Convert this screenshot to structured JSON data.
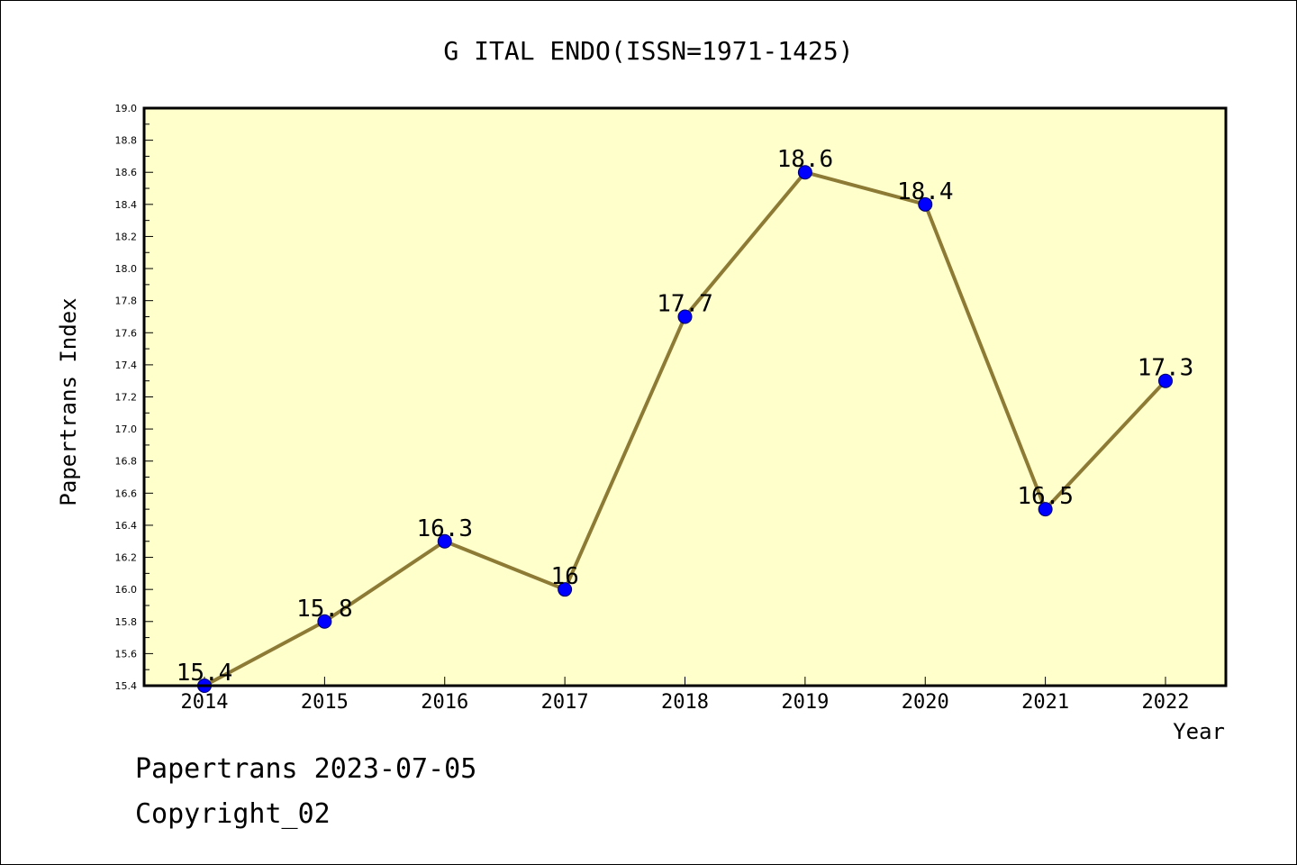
{
  "chart_data": {
    "type": "line",
    "title": "G ITAL ENDO(ISSN=1971-1425)",
    "xlabel": "Year",
    "ylabel": "Papertrans Index",
    "x": [
      "2014",
      "2015",
      "2016",
      "2017",
      "2018",
      "2019",
      "2020",
      "2021",
      "2022"
    ],
    "series": [
      {
        "values": [
          15.4,
          15.8,
          16.3,
          16.0,
          17.7,
          18.6,
          18.4,
          16.5,
          17.3
        ],
        "data_labels": [
          "15.4",
          "15.8",
          "16.3",
          "16",
          "17.7",
          "18.6",
          "18.4",
          "16.5",
          "17.3"
        ]
      }
    ],
    "ylim": [
      15.4,
      19.0
    ],
    "yticks": [
      "15.4",
      "15.6",
      "15.8",
      "16.0",
      "16.2",
      "16.4",
      "16.6",
      "16.8",
      "17.0",
      "17.2",
      "17.4",
      "17.6",
      "17.8",
      "18.0",
      "18.2",
      "18.4",
      "18.6",
      "18.8",
      "19.0"
    ],
    "grid": false,
    "legend": "none",
    "colors": {
      "plot_background": "#ffffcc",
      "line": "#8c7a35",
      "marker": "#0000ff",
      "marker_edge": "#000066",
      "axes": "#000000"
    }
  },
  "footer": {
    "line1": "Papertrans 2023-07-05",
    "line2": "Copyright_02"
  }
}
